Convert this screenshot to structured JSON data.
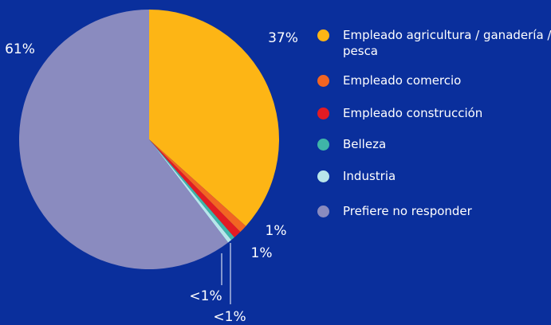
{
  "chart_data": {
    "type": "pie",
    "categories": [
      "Empleado agricultura / ganadería / pesca",
      "Empleado comercio",
      "Empleado construcción",
      "Belleza",
      "Industria",
      "Prefiere no responder"
    ],
    "values": [
      37,
      1,
      1,
      0.5,
      0.5,
      61
    ],
    "value_labels": [
      "37%",
      "1%",
      "1%",
      "<1%",
      "<1%",
      "61%"
    ],
    "colors": [
      "#fdb515",
      "#f26522",
      "#e31b23",
      "#3fb5a8",
      "#b8e6ea",
      "#8a8bbf"
    ]
  }
}
